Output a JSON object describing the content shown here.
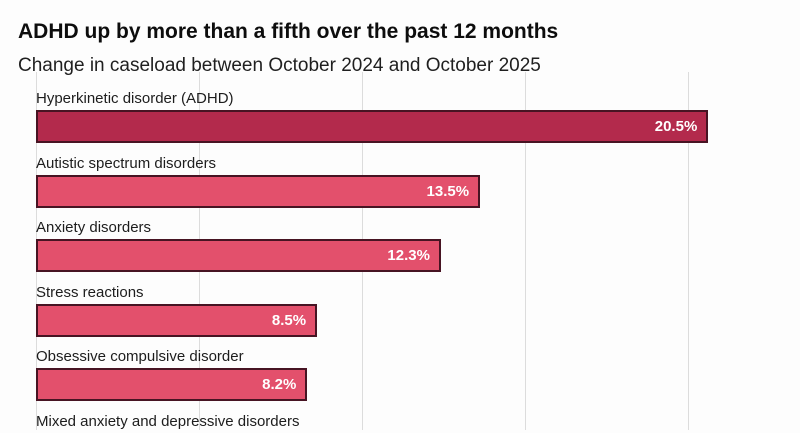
{
  "header": {
    "title": "ADHD up by more than a fifth over the past 12 months",
    "subtitle": "Change in caseload between October 2024 and October 2025"
  },
  "chart_data": {
    "type": "bar",
    "orientation": "horizontal",
    "title": "ADHD up by more than a fifth over the past 12 months",
    "subtitle": "Change in caseload between October 2024 and October 2025",
    "categories": [
      "Hyperkinetic disorder (ADHD)",
      "Autistic spectrum disorders",
      "Anxiety disorders",
      "Stress reactions",
      "Obsessive compulsive disorder",
      "Mixed anxiety and depressive disorders"
    ],
    "values": [
      20.5,
      13.5,
      12.3,
      8.5,
      8.2,
      null
    ],
    "value_labels": [
      "20.5%",
      "13.5%",
      "12.3%",
      "8.5%",
      "8.2%",
      null
    ],
    "unit": "percent",
    "xlim": [
      0,
      23.4
    ],
    "gridline_values": [
      0,
      5,
      10,
      15,
      20
    ],
    "grid": "vertical",
    "legend": false,
    "note": "sixth category bar cut off at bottom edge of image",
    "colors": {
      "highlight_bar": "#b32a4c",
      "default_bar": "#e3506c",
      "bar_border": "#471423",
      "gridline": "#dcdcdc",
      "value_text": "#ffffff",
      "label_text": "#1d1d1d"
    },
    "highlight_index": 0
  }
}
